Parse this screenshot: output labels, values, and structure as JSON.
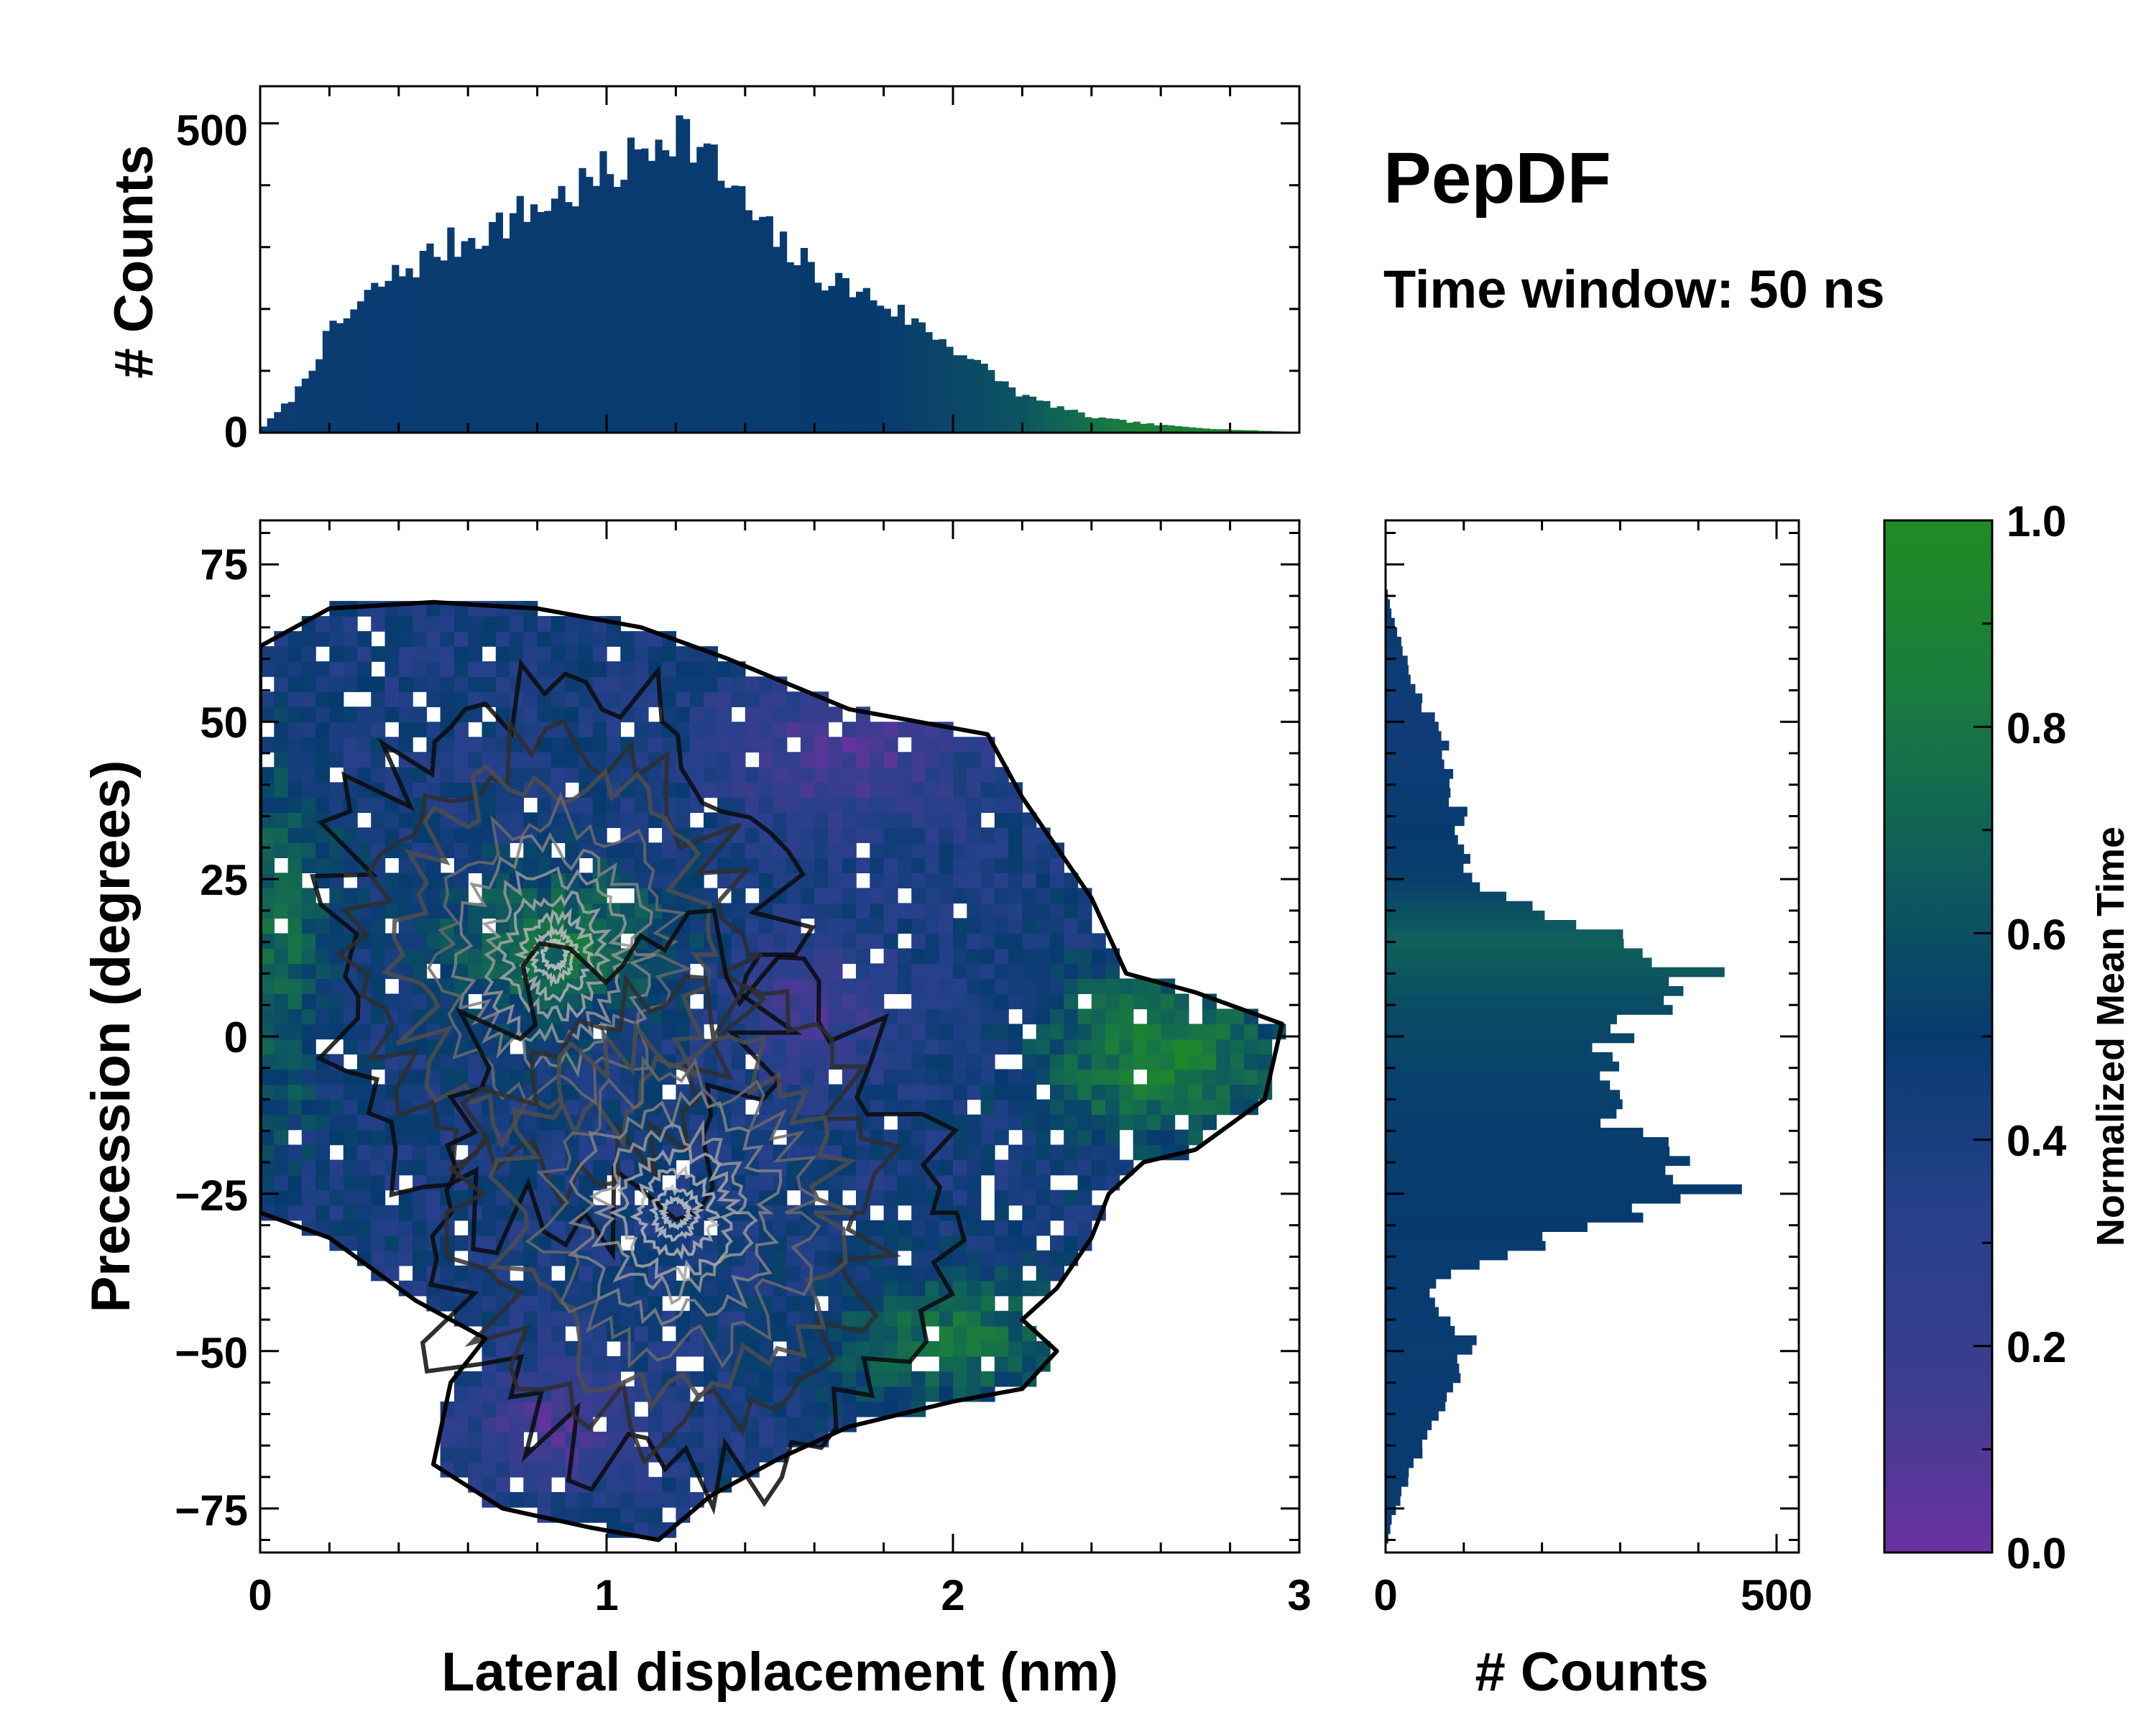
{
  "chart_data": [
    {
      "id": "top-histogram",
      "type": "bar",
      "ylabel": "# Counts",
      "xlim": [
        0,
        3
      ],
      "ylim": [
        0,
        560
      ],
      "yticks": [
        0,
        500
      ],
      "ytick_labels": [
        "0",
        "500"
      ],
      "bin_width": 0.02,
      "profile_x": [
        0,
        0.1,
        0.2,
        0.35,
        0.5,
        0.7,
        0.9,
        1.05,
        1.15,
        1.2,
        1.3,
        1.45,
        1.6,
        1.8,
        2.0,
        2.2,
        2.4,
        2.6,
        2.8,
        3.0
      ],
      "profile_counts": [
        5,
        60,
        160,
        240,
        290,
        340,
        390,
        430,
        480,
        500,
        440,
        330,
        260,
        210,
        140,
        60,
        25,
        12,
        5,
        1
      ],
      "color_profile_x": [
        0,
        1.8,
        2.2,
        2.5,
        3.0
      ],
      "color_profile_t": [
        0.48,
        0.5,
        0.62,
        0.85,
        0.95
      ]
    },
    {
      "id": "main-density",
      "type": "heatmap",
      "xlabel": "Lateral displacement (nm)",
      "ylabel": "Precession (degrees)",
      "xlim": [
        0,
        3
      ],
      "ylim": [
        -82,
        82
      ],
      "xticks": [
        0,
        1,
        2,
        3
      ],
      "xtick_labels": [
        "0",
        "1",
        "2",
        "3"
      ],
      "yticks": [
        -75,
        -50,
        -25,
        0,
        25,
        50,
        75
      ],
      "ytick_labels": [
        "−75",
        "−50",
        "−25",
        "0",
        "25",
        "50",
        "75"
      ],
      "contour_density_peaks": [
        [
          0.85,
          13
        ],
        [
          1.2,
          -28
        ]
      ],
      "boundary": [
        [
          0,
          62
        ],
        [
          0.2,
          68
        ],
        [
          0.5,
          69
        ],
        [
          0.8,
          68
        ],
        [
          1.1,
          65
        ],
        [
          1.35,
          60
        ],
        [
          1.7,
          52
        ],
        [
          2.1,
          48
        ],
        [
          2.2,
          38
        ],
        [
          2.3,
          30
        ],
        [
          2.4,
          22
        ],
        [
          2.5,
          10
        ],
        [
          2.7,
          7
        ],
        [
          2.95,
          2
        ],
        [
          2.9,
          -10
        ],
        [
          2.7,
          -18
        ],
        [
          2.55,
          -20
        ],
        [
          2.45,
          -25
        ],
        [
          2.4,
          -32
        ],
        [
          2.3,
          -40
        ],
        [
          2.2,
          -45
        ],
        [
          2.3,
          -50
        ],
        [
          2.2,
          -56
        ],
        [
          2.0,
          -58
        ],
        [
          1.7,
          -62
        ],
        [
          1.5,
          -67
        ],
        [
          1.3,
          -73
        ],
        [
          1.15,
          -80
        ],
        [
          0.95,
          -78
        ],
        [
          0.7,
          -75
        ],
        [
          0.5,
          -68
        ],
        [
          0.55,
          -55
        ],
        [
          0.65,
          -48
        ],
        [
          0.45,
          -42
        ],
        [
          0.2,
          -32
        ],
        [
          0,
          -28
        ]
      ]
    },
    {
      "id": "right-histogram",
      "type": "bar",
      "xlabel": "# Counts",
      "xlim": [
        0,
        500
      ],
      "ylim": [
        -82,
        82
      ],
      "xticks": [
        0,
        500
      ],
      "xtick_labels": [
        "0",
        "500"
      ],
      "bin_width": 1.5,
      "profile_y": [
        -82,
        -76,
        -70,
        -62,
        -55,
        -48,
        -42,
        -38,
        -33,
        -28,
        -25,
        -20,
        -14,
        -5,
        0,
        5,
        10,
        15,
        20,
        25,
        32,
        38,
        42,
        48,
        55,
        60,
        66,
        72
      ],
      "profile_counts": [
        0,
        10,
        30,
        60,
        90,
        110,
        60,
        70,
        190,
        330,
        430,
        360,
        300,
        290,
        300,
        360,
        390,
        340,
        190,
        110,
        100,
        90,
        80,
        70,
        40,
        25,
        10,
        0
      ],
      "color_profile_y": [
        -80,
        -50,
        -30,
        -10,
        5,
        15,
        25,
        50,
        70
      ],
      "color_profile_t": [
        0.5,
        0.48,
        0.5,
        0.52,
        0.58,
        0.68,
        0.52,
        0.45,
        0.5
      ]
    },
    {
      "id": "colorbar",
      "type": "colorbar",
      "label": "Normalized Mean Time",
      "range": [
        0,
        1
      ],
      "ticks": [
        0,
        0.2,
        0.4,
        0.6,
        0.8,
        1.0
      ],
      "tick_labels": [
        "0.0",
        "0.2",
        "0.4",
        "0.6",
        "0.8",
        "1.0"
      ],
      "colors": [
        "#6a329f",
        "#3b3d8f",
        "#26408b",
        "#073b6f",
        "#0f5e5b",
        "#1a7b3f",
        "#228b22"
      ]
    }
  ],
  "annotations": {
    "title": "PepDF",
    "subtitle": "Time window: 50 ns"
  }
}
